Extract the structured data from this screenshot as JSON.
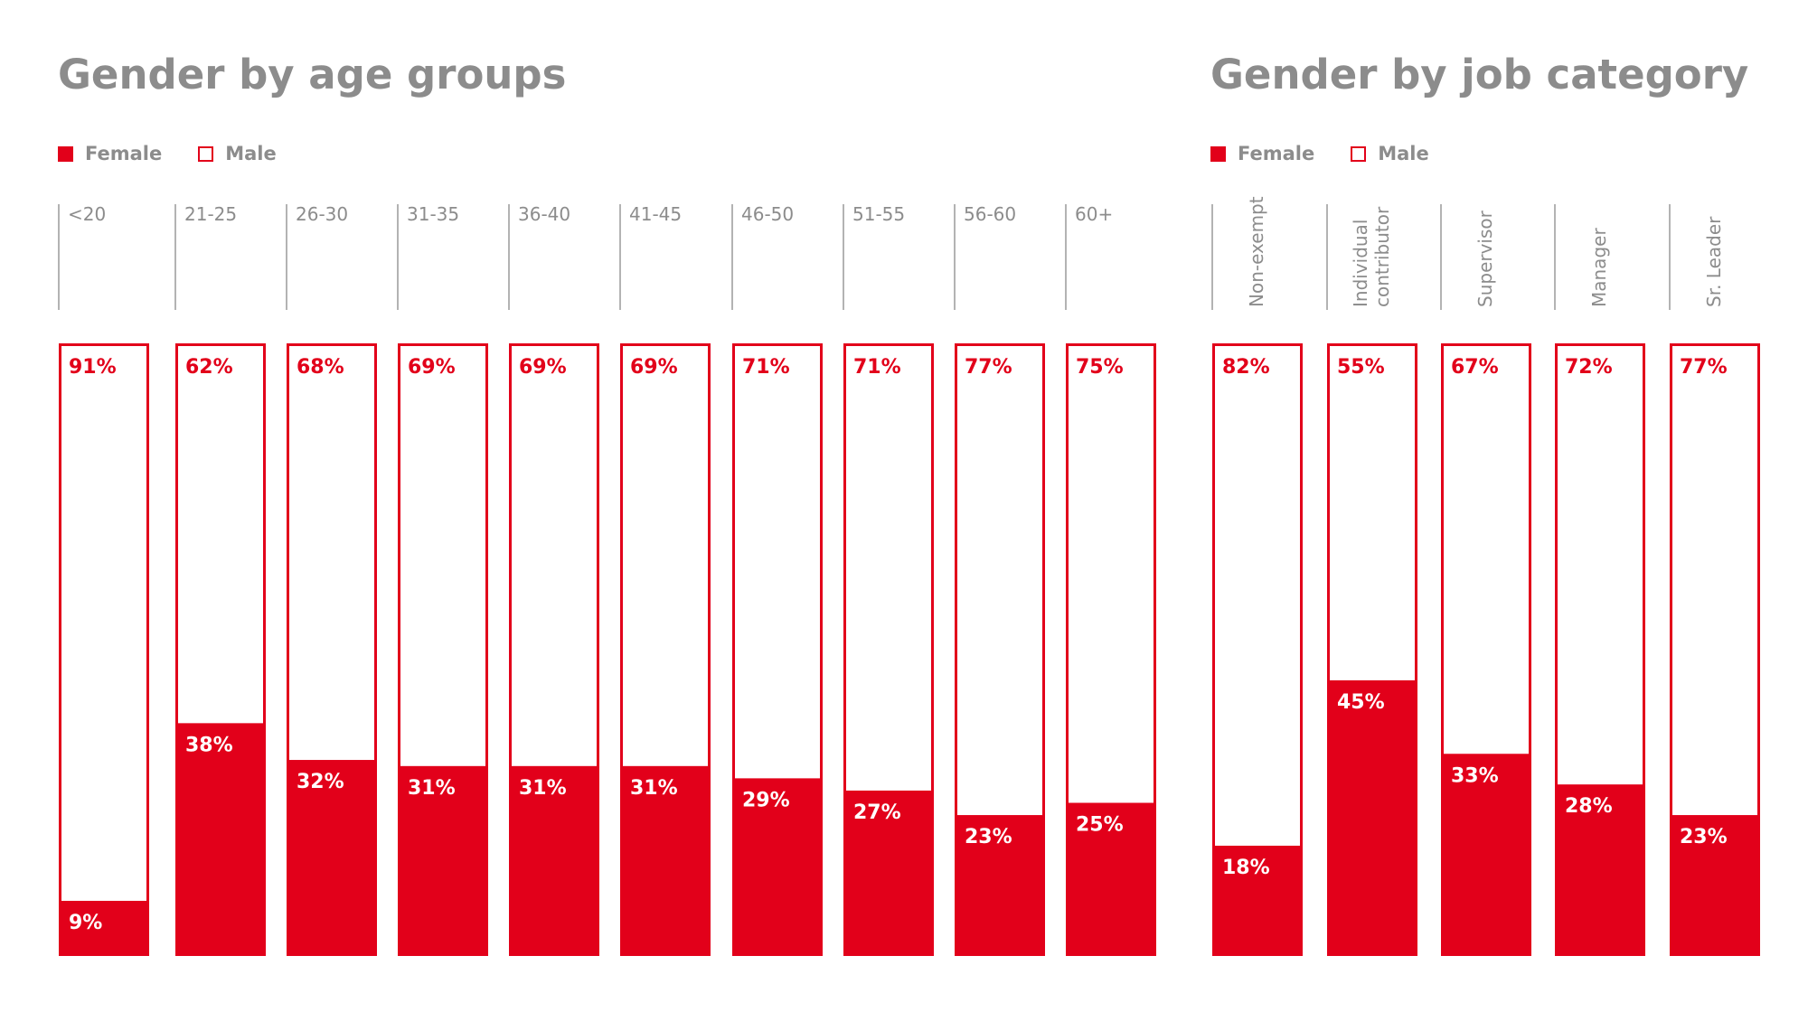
{
  "legend": {
    "female": "Female",
    "male": "Male"
  },
  "colors": {
    "female": "#e2001a",
    "male_fill": "#ffffff",
    "outline": "#e2001a",
    "title": "#8c8c8c",
    "divider": "#b3b3b3"
  },
  "chart_data": [
    {
      "type": "bar",
      "stacked": true,
      "title": "Gender by age groups",
      "categories": [
        "<20",
        "21-25",
        "26-30",
        "31-35",
        "36-40",
        "41-45",
        "46-50",
        "51-55",
        "56-60",
        "60+"
      ],
      "series": [
        {
          "name": "Female",
          "values": [
            9,
            38,
            32,
            31,
            31,
            31,
            29,
            27,
            23,
            25
          ]
        },
        {
          "name": "Male",
          "values": [
            91,
            62,
            68,
            69,
            69,
            69,
            71,
            71,
            77,
            75
          ]
        }
      ],
      "ylim": [
        0,
        100
      ],
      "grid": false,
      "legend_position": "top-left"
    },
    {
      "type": "bar",
      "stacked": true,
      "title": "Gender by job category",
      "categories": [
        "Non-exempt",
        [
          "Individual",
          "contributor"
        ],
        "Supervisor",
        "Manager",
        "Sr. Leader"
      ],
      "series": [
        {
          "name": "Female",
          "values": [
            18,
            45,
            33,
            28,
            23
          ]
        },
        {
          "name": "Male",
          "values": [
            82,
            55,
            67,
            72,
            77
          ]
        }
      ],
      "ylim": [
        0,
        100
      ],
      "grid": false,
      "legend_position": "top-left"
    }
  ]
}
